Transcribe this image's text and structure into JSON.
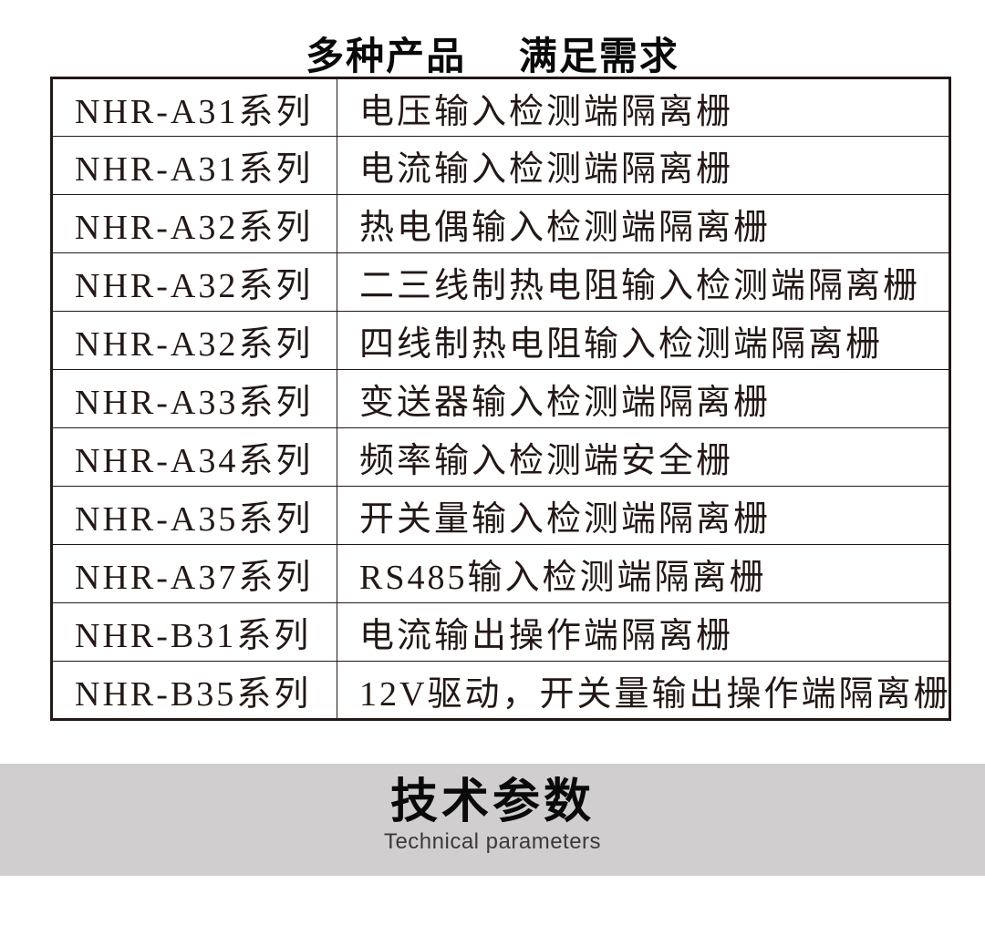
{
  "page": {
    "title": "多种产品　 满足需求"
  },
  "table": {
    "rows": [
      {
        "series": "NHR-A31系列",
        "desc": "电压输入检测端隔离栅"
      },
      {
        "series": "NHR-A31系列",
        "desc": "电流输入检测端隔离栅"
      },
      {
        "series": "NHR-A32系列",
        "desc": "热电偶输入检测端隔离栅"
      },
      {
        "series": "NHR-A32系列",
        "desc": "二三线制热电阻输入检测端隔离栅"
      },
      {
        "series": "NHR-A32系列",
        "desc": "四线制热电阻输入检测端隔离栅"
      },
      {
        "series": "NHR-A33系列",
        "desc": "变送器输入检测端隔离栅"
      },
      {
        "series": "NHR-A34系列",
        "desc": "频率输入检测端安全栅"
      },
      {
        "series": "NHR-A35系列",
        "desc": "开关量输入检测端隔离栅"
      },
      {
        "series": "NHR-A37系列",
        "desc": "RS485输入检测端隔离栅"
      },
      {
        "series": "NHR-B31系列",
        "desc": "电流输出操作端隔离栅"
      },
      {
        "series": "NHR-B35系列",
        "desc": "12V驱动，开关量输出操作端隔离栅"
      }
    ]
  },
  "section": {
    "heading": "技术参数",
    "subheading": "Technical parameters"
  },
  "colors": {
    "ink": "#231815",
    "band_bg": "#d0cecf",
    "title_ink": "#0a0a0a"
  }
}
